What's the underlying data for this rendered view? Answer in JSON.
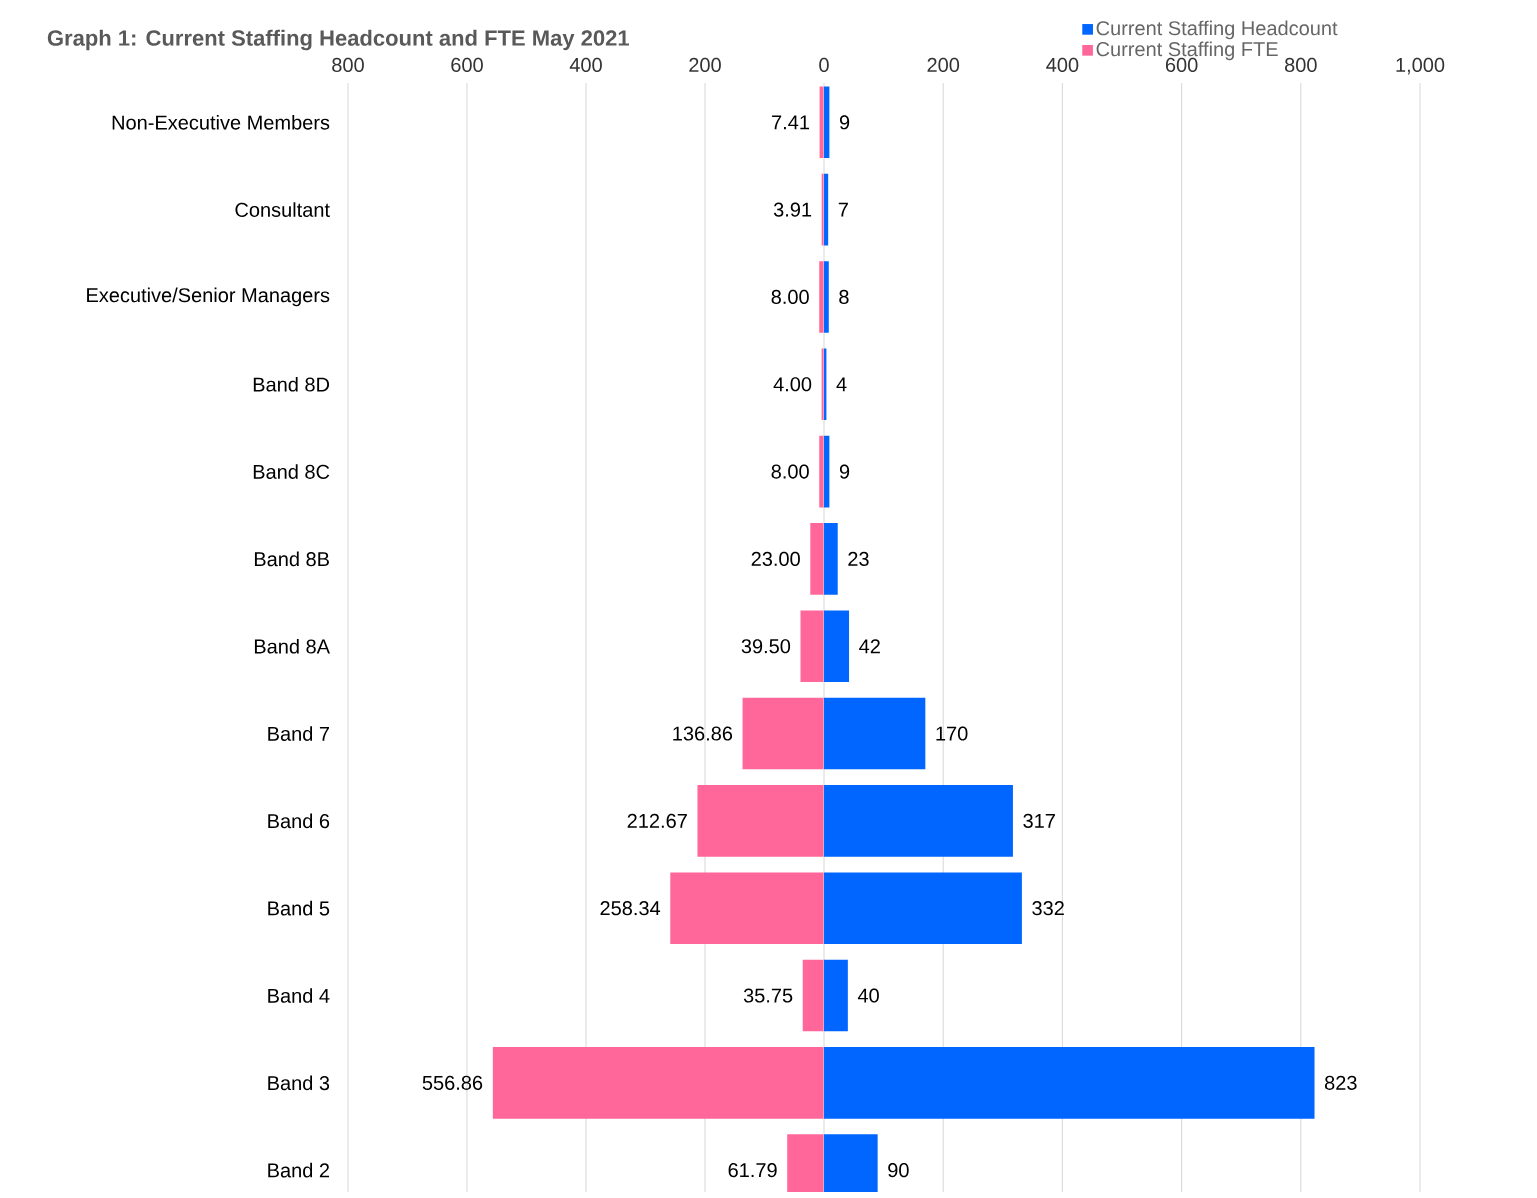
{
  "chart_data": [
    {
      "type": "bar",
      "orientation": "horizontal",
      "title": "Graph 1: Current Staffing Headcount and FTE May 2021",
      "categories": [
        "Non-Executive Members",
        "Consultant",
        "Executive/Senior Managers",
        "Band 8D",
        "Band 8C",
        "Band 8B",
        "Band 8A",
        "Band 7",
        "Band 6",
        "Band 5",
        "Band 4",
        "Band 3",
        "Band 2"
      ],
      "series": [
        {
          "name": "Current Staffing FTE",
          "color": "#ff6699",
          "values": [
            7.41,
            3.91,
            8.0,
            4.0,
            8.0,
            23.0,
            39.5,
            136.86,
            212.67,
            258.34,
            35.75,
            556.86,
            61.79
          ],
          "value_labels": [
            "7.41",
            "3.91",
            "8.00",
            "4.00",
            "8.00",
            "23.00",
            "39.50",
            "136.86",
            "212.67",
            "258.34",
            "35.75",
            "556.86",
            "61.79"
          ]
        }
      ],
      "xlim": [
        800,
        0
      ],
      "xticks": [
        800,
        600,
        400,
        200
      ],
      "grid": "x",
      "legend": "top right"
    },
    {
      "type": "bar",
      "orientation": "horizontal",
      "categories": [
        null,
        null,
        null,
        null,
        null,
        null,
        null,
        null,
        null,
        null,
        null,
        null,
        null
      ],
      "series": [
        {
          "name": "Current Staffing Headcount",
          "color": "#0066ff",
          "values": [
            9,
            7,
            8,
            4,
            9,
            23,
            42,
            170,
            317,
            332,
            40,
            823,
            90
          ],
          "value_labels": [
            "9",
            "7",
            "8",
            "4",
            "9",
            "23",
            "42",
            "170",
            "317",
            "332",
            "40",
            "823",
            "90"
          ]
        }
      ],
      "xlim": [
        0,
        1000
      ],
      "xticks": [
        0,
        200,
        400,
        600,
        800,
        {
          "value": 1000,
          "label": "1,000"
        }
      ],
      "grid": "x",
      "legend": "top right",
      "tick_labels": "x"
    }
  ]
}
